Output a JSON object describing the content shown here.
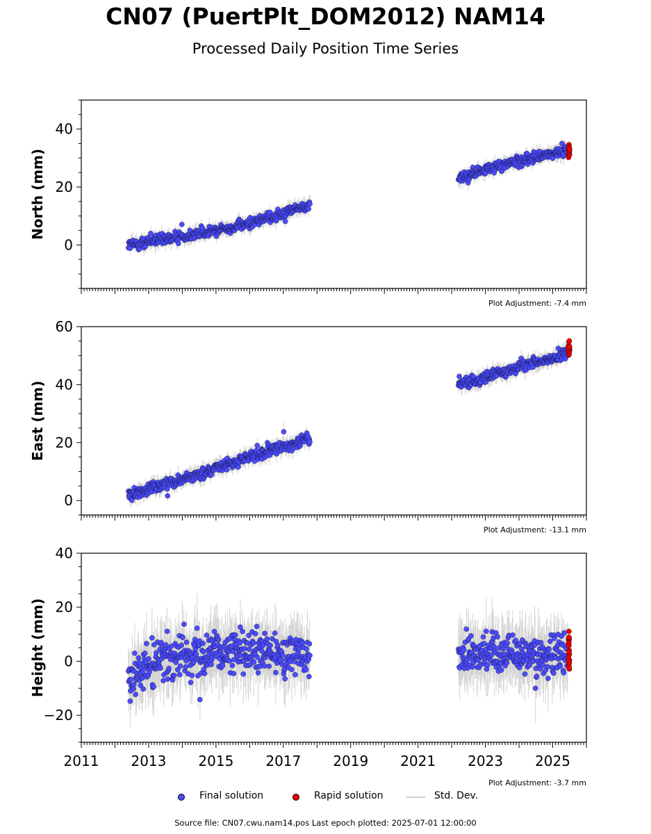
{
  "title": "CN07 (PuertPlt_DOM2012) NAM14",
  "subtitle": "Processed Daily Position Time Series",
  "legend": {
    "final": "Final solution",
    "rapid": "Rapid solution",
    "stddev": "Std. Dev."
  },
  "footer": "Source file: CN07.cwu.nam14.pos  Last epoch plotted: 2025-07-01 12:00:00",
  "colors": {
    "final": "#4b4bff",
    "rapid": "#ee0000",
    "stddev": "#c8c8c8"
  },
  "chart_data": [
    {
      "type": "scatter",
      "ylabel": "North (mm)",
      "adjustment": "Plot Adjustment: -7.4 mm",
      "xlim": [
        2011.0,
        2026.0
      ],
      "ylim": [
        -15,
        50
      ],
      "yticks": [
        0,
        20,
        40
      ],
      "xticks": [
        2011,
        2013,
        2015,
        2017,
        2019,
        2021,
        2023,
        2025
      ],
      "show_xticklabels": false,
      "series": [
        {
          "name": "Final solution",
          "x": [
            2012.4,
            2013.0,
            2014.0,
            2015.0,
            2016.0,
            2017.0,
            2017.8,
            2022.2,
            2023.0,
            2024.0,
            2025.0,
            2025.45
          ],
          "y": [
            0,
            1,
            3,
            5,
            7.5,
            11,
            14,
            23,
            26,
            29,
            31.5,
            33
          ]
        },
        {
          "name": "Rapid solution",
          "x": [
            2025.47,
            2025.5
          ],
          "y": [
            31,
            34
          ]
        }
      ],
      "noise_sd": 1.4,
      "rapid_spread": 2.0
    },
    {
      "type": "scatter",
      "ylabel": "East (mm)",
      "adjustment": "Plot Adjustment: -13.1 mm",
      "xlim": [
        2011.0,
        2026.0
      ],
      "ylim": [
        -5,
        60
      ],
      "yticks": [
        0,
        20,
        40,
        60
      ],
      "xticks": [
        2011,
        2013,
        2015,
        2017,
        2019,
        2021,
        2023,
        2025
      ],
      "show_xticklabels": false,
      "series": [
        {
          "name": "Final solution",
          "x": [
            2012.4,
            2013.0,
            2014.0,
            2015.0,
            2016.0,
            2017.0,
            2017.8,
            2022.2,
            2023.0,
            2024.0,
            2025.0,
            2025.45
          ],
          "y": [
            2,
            4,
            7.5,
            11,
            15,
            18.5,
            21.5,
            40,
            42.5,
            46,
            49,
            51
          ]
        },
        {
          "name": "Rapid solution",
          "x": [
            2025.47,
            2025.5
          ],
          "y": [
            51,
            54
          ]
        }
      ],
      "noise_sd": 1.5,
      "rapid_spread": 2.0
    },
    {
      "type": "scatter",
      "ylabel": "Height (mm)",
      "adjustment": "Plot Adjustment: -3.7 mm",
      "xlim": [
        2011.0,
        2026.0
      ],
      "ylim": [
        -30,
        40
      ],
      "yticks": [
        -20,
        0,
        20,
        40
      ],
      "xticks": [
        2011,
        2013,
        2015,
        2017,
        2019,
        2021,
        2023,
        2025
      ],
      "xticklabels": [
        "2011",
        "2013",
        "2015",
        "2017",
        "2019",
        "2021",
        "2023",
        "2025"
      ],
      "show_xticklabels": true,
      "series": [
        {
          "name": "Final solution",
          "x": [
            2012.4,
            2013.0,
            2014.0,
            2015.0,
            2016.0,
            2017.0,
            2017.8,
            2022.2,
            2023.0,
            2024.0,
            2025.0,
            2025.45
          ],
          "y": [
            -5,
            -2,
            3,
            4,
            3,
            2,
            3,
            3,
            4,
            3,
            2,
            2
          ]
        },
        {
          "name": "Rapid solution",
          "x": [
            2025.47,
            2025.5
          ],
          "y": [
            0,
            4
          ]
        }
      ],
      "noise_sd": 6.0,
      "rapid_spread": 8.0
    }
  ]
}
